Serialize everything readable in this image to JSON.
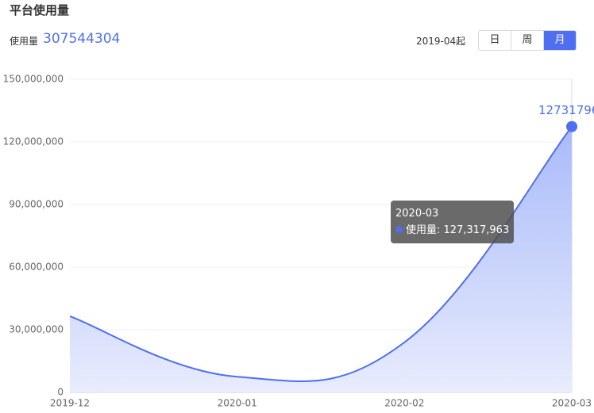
{
  "header": {
    "title": "平台使用量",
    "total_label": "使用量",
    "total_value": "307544304",
    "since": "2019-04起",
    "tabs": [
      "日",
      "周",
      "月"
    ],
    "active_tab": 2
  },
  "chart_data": {
    "type": "area",
    "categories": [
      "2019-12",
      "2020-01",
      "2020-02",
      "2020-03"
    ],
    "series": [
      {
        "name": "使用量",
        "color": "#4f6ff0",
        "values": [
          36500000,
          7500000,
          24000000,
          127317963
        ]
      }
    ],
    "ylim": [
      0,
      150000000
    ],
    "yticks": [
      0,
      {
        "value": 30000000,
        "label": "30,000,000"
      },
      {
        "value": 60000000,
        "label": "60,000,000"
      },
      {
        "value": 90000000,
        "label": "90,000,000"
      },
      {
        "value": 120000000,
        "label": "120,000,000"
      },
      {
        "value": 150000000,
        "label": "150,000,000"
      }
    ],
    "grid": true,
    "tooltip": {
      "category": "2020-03",
      "text": "使用量: 127,317,963"
    }
  }
}
